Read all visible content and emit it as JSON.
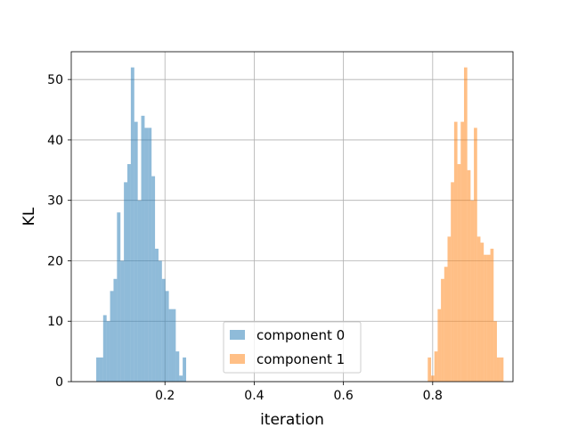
{
  "chart_data": {
    "type": "histogram",
    "xlabel": "iteration",
    "ylabel": "KL",
    "xlim": [
      -0.01,
      0.98
    ],
    "ylim": [
      0,
      54.6
    ],
    "xticks": [
      0.2,
      0.4,
      0.6,
      0.8
    ],
    "xtick_labels": [
      "0.2",
      "0.4",
      "0.6",
      "0.8"
    ],
    "yticks": [
      0,
      10,
      20,
      30,
      40,
      50
    ],
    "ytick_labels": [
      "0",
      "10",
      "20",
      "30",
      "40",
      "50"
    ],
    "grid": true,
    "legend_position": "lower center",
    "series": [
      {
        "name": "component 0",
        "color": "#1f77b4",
        "opacity": 0.5,
        "bin_width": 0.00775,
        "bin_start": 0.046,
        "counts": [
          4,
          4,
          11,
          10,
          15,
          17,
          28,
          20,
          33,
          36,
          52,
          43,
          30,
          44,
          42,
          42,
          34,
          22,
          20,
          17,
          15,
          12,
          12,
          5,
          1,
          4
        ]
      },
      {
        "name": "component 1",
        "color": "#ff7f0e",
        "opacity": 0.5,
        "bin_width": 0.00738,
        "bin_start": 0.789,
        "counts": [
          4,
          1,
          5,
          12,
          17,
          19,
          24,
          33,
          43,
          36,
          43,
          52,
          35,
          30,
          42,
          24,
          23,
          21,
          21,
          22,
          10,
          4,
          4
        ]
      }
    ]
  }
}
